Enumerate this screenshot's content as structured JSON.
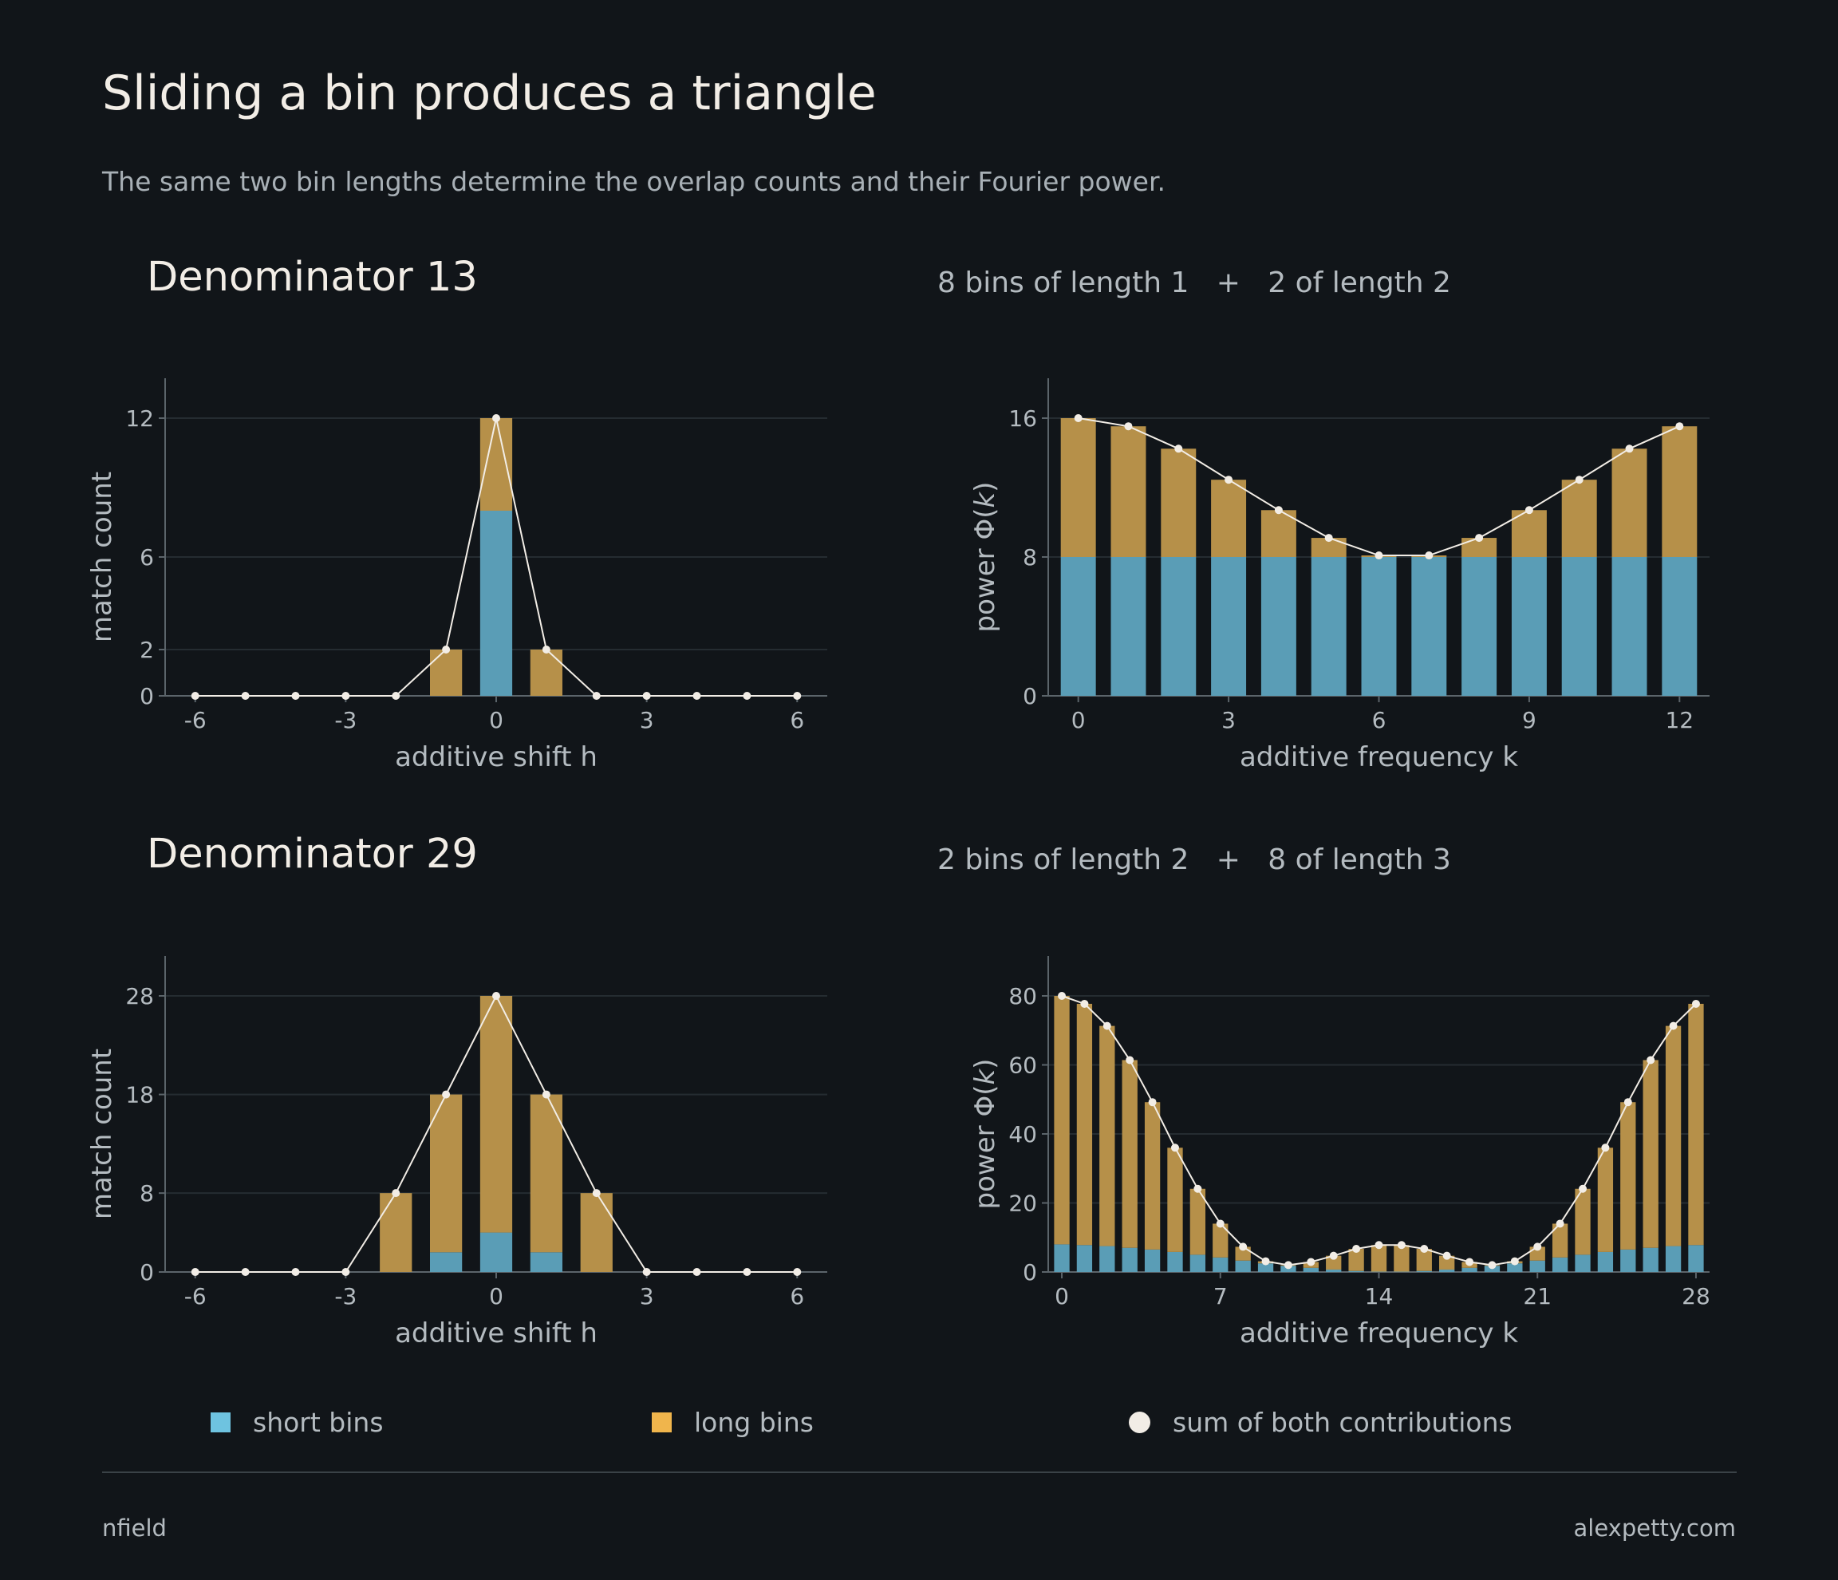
{
  "title": "Sliding a bin produces a triangle",
  "subtitle": "The same two bin lengths determine the overlap counts and their Fourier power.",
  "rows": [
    {
      "title": "Denominator 13",
      "subtitle": "8 bins of length 1   +   2 of length 2"
    },
    {
      "title": "Denominator 29",
      "subtitle": "2 bins of length 2   +   8 of length 3"
    }
  ],
  "colors": {
    "background": "#111519",
    "short_bins": "#5a9db6",
    "long_bins": "#b69049",
    "sum_line": "#f2ede6",
    "legend_short": "#6ec3e0",
    "legend_long": "#f0b54c"
  },
  "legend": {
    "short": "short bins",
    "long": "long bins",
    "sum": "sum of both contributions"
  },
  "footer": {
    "left": "nfield",
    "right": "alexpetty.com"
  },
  "chart_data": [
    {
      "type": "bar",
      "stacked": true,
      "xlabel": "additive shift h",
      "ylabel": "match count",
      "x": [
        -6,
        -5,
        -4,
        -3,
        -2,
        -1,
        0,
        1,
        2,
        3,
        4,
        5,
        6
      ],
      "xticks": [
        -6,
        -3,
        0,
        3,
        6
      ],
      "xtick_labels": [
        "-6",
        "-3",
        "0",
        "3",
        "6"
      ],
      "yticks": [
        0,
        2,
        6,
        12
      ],
      "ytick_labels": [
        "0",
        "2",
        "6",
        "12"
      ],
      "xlim": [
        -6.6,
        6.6
      ],
      "ylim": [
        0,
        12
      ],
      "series": [
        {
          "name": "short bins",
          "values": [
            0,
            0,
            0,
            0,
            0,
            0,
            8,
            0,
            0,
            0,
            0,
            0,
            0
          ]
        },
        {
          "name": "long bins",
          "values": [
            0,
            0,
            0,
            0,
            0,
            2,
            4,
            2,
            0,
            0,
            0,
            0,
            0
          ]
        }
      ],
      "sum": [
        0,
        0,
        0,
        0,
        0,
        2,
        12,
        2,
        0,
        0,
        0,
        0,
        0
      ],
      "grid": true
    },
    {
      "type": "bar",
      "stacked": true,
      "xlabel": "additive frequency k",
      "ylabel": "power Φ(k)",
      "ylabel_parts": [
        "power Φ(",
        "k",
        ")"
      ],
      "x": [
        0,
        1,
        2,
        3,
        4,
        5,
        6,
        7,
        8,
        9,
        10,
        11,
        12
      ],
      "xticks": [
        0,
        3,
        6,
        9,
        12
      ],
      "xtick_labels": [
        "0",
        "3",
        "6",
        "9",
        "12"
      ],
      "yticks": [
        0,
        8,
        16
      ],
      "ytick_labels": [
        "0",
        "8",
        "16"
      ],
      "xlim": [
        -0.6,
        12.6
      ],
      "ylim": [
        0,
        16
      ],
      "series": [
        {
          "name": "short bins",
          "values": [
            8,
            8,
            8,
            8,
            8,
            8,
            8,
            8,
            8,
            8,
            8,
            8,
            8
          ]
        },
        {
          "name": "long bins",
          "values": [
            8,
            7.53,
            6.24,
            4.45,
            2.7,
            1.1,
            0.09,
            0.09,
            1.1,
            2.7,
            4.45,
            6.24,
            7.53
          ]
        }
      ],
      "sum": [
        16,
        15.53,
        14.24,
        12.45,
        10.7,
        9.1,
        8.09,
        8.09,
        9.1,
        10.7,
        12.45,
        14.24,
        15.53
      ],
      "grid": true
    },
    {
      "type": "bar",
      "stacked": true,
      "xlabel": "additive shift h",
      "ylabel": "match count",
      "x": [
        -6,
        -5,
        -4,
        -3,
        -2,
        -1,
        0,
        1,
        2,
        3,
        4,
        5,
        6
      ],
      "xticks": [
        -6,
        -3,
        0,
        3,
        6
      ],
      "xtick_labels": [
        "-6",
        "-3",
        "0",
        "3",
        "6"
      ],
      "yticks": [
        0,
        8,
        18,
        28
      ],
      "ytick_labels": [
        "0",
        "8",
        "18",
        "28"
      ],
      "xlim": [
        -6.6,
        6.6
      ],
      "ylim": [
        0,
        28
      ],
      "series": [
        {
          "name": "short bins",
          "values": [
            0,
            0,
            0,
            0,
            0,
            2,
            4,
            2,
            0,
            0,
            0,
            0,
            0
          ]
        },
        {
          "name": "long bins",
          "values": [
            0,
            0,
            0,
            0,
            8,
            16,
            24,
            16,
            8,
            0,
            0,
            0,
            0
          ]
        }
      ],
      "sum": [
        0,
        0,
        0,
        0,
        8,
        18,
        28,
        18,
        8,
        0,
        0,
        0,
        0
      ],
      "grid": true
    },
    {
      "type": "bar",
      "stacked": true,
      "xlabel": "additive frequency k",
      "ylabel": "power Φ(k)",
      "ylabel_parts": [
        "power Φ(",
        "k",
        ")"
      ],
      "x": [
        0,
        1,
        2,
        3,
        4,
        5,
        6,
        7,
        8,
        9,
        10,
        11,
        12,
        13,
        14,
        15,
        16,
        17,
        18,
        19,
        20,
        21,
        22,
        23,
        24,
        25,
        26,
        27,
        28
      ],
      "xticks": [
        0,
        7,
        14,
        21,
        28
      ],
      "xtick_labels": [
        "0",
        "7",
        "14",
        "21",
        "28"
      ],
      "yticks": [
        0,
        20,
        40,
        60,
        80
      ],
      "ytick_labels": [
        "0",
        "20",
        "40",
        "60",
        "80"
      ],
      "xlim": [
        -0.6,
        28.6
      ],
      "ylim": [
        0,
        80
      ],
      "series": [
        {
          "name": "short bins",
          "values": [
            8,
            7.8,
            7.5,
            7.0,
            6.5,
            5.8,
            5.0,
            4.2,
            3.3,
            2.5,
            1.8,
            1.2,
            0.7,
            0.3,
            0.1,
            0.1,
            0.3,
            0.7,
            1.2,
            1.8,
            2.5,
            3.3,
            4.2,
            5.0,
            5.8,
            6.5,
            7.0,
            7.5,
            7.8
          ]
        },
        {
          "name": "long bins",
          "values": [
            72,
            69.9,
            63.8,
            54.4,
            42.7,
            30.2,
            19.1,
            9.8,
            4.0,
            0.6,
            0.2,
            1.7,
            4.0,
            6.4,
            7.7,
            7.7,
            6.4,
            4.0,
            1.7,
            0.2,
            0.6,
            4.0,
            9.8,
            19.1,
            30.2,
            42.7,
            54.4,
            63.8,
            69.9
          ]
        }
      ],
      "sum": [
        80,
        77.7,
        71.3,
        61.4,
        49.2,
        36.0,
        24.1,
        14.0,
        7.3,
        3.1,
        2.0,
        2.9,
        4.7,
        6.7,
        7.8,
        7.8,
        6.7,
        4.7,
        2.9,
        2.0,
        3.1,
        7.3,
        14.0,
        24.1,
        36.0,
        49.2,
        61.4,
        71.3,
        77.7
      ],
      "grid": true
    }
  ]
}
